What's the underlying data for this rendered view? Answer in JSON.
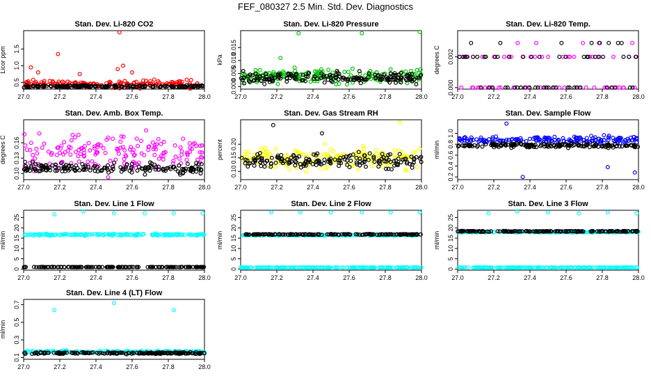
{
  "page_title": "FEF_080327  2.5 Min. Std. Dev. Diagnostics",
  "colors": {
    "axis": "#000000",
    "red": "#ff0000",
    "green": "#00c000",
    "magenta": "#ff00ff",
    "black": "#000000",
    "yellow": "#ffff00",
    "blue": "#0000ff",
    "cyan": "#00ffff"
  },
  "chart_data": [
    {
      "type": "scatter",
      "title": "Stan. Dev. Li-820 CO2",
      "xlabel": "",
      "ylabel": "Licor ppm",
      "xlim": [
        27.0,
        28.0
      ],
      "ylim": [
        0.3,
        2.05
      ],
      "x_ticks": [
        "27.0",
        "27.2",
        "27.4",
        "27.6",
        "27.8",
        "28.0"
      ],
      "y_ticks": [
        "0.5",
        "1.0",
        "1.5"
      ],
      "series": [
        {
          "color": "red",
          "base": 0.45,
          "spread": 0.15,
          "outliers": [
            [
              27.04,
              0.95
            ],
            [
              27.08,
              0.8
            ],
            [
              27.19,
              1.35
            ],
            [
              27.31,
              0.75
            ],
            [
              27.52,
              0.9
            ],
            [
              27.53,
              2.0
            ],
            [
              27.55,
              1.0
            ],
            [
              27.6,
              0.8
            ]
          ]
        },
        {
          "color": "black",
          "base": 0.38,
          "spread": 0.05,
          "outliers": []
        }
      ]
    },
    {
      "type": "scatter",
      "title": "Stan. Dev. Li-820 Pressure",
      "xlabel": "",
      "ylabel": "kPa",
      "xlim": [
        27.0,
        28.0
      ],
      "ylim": [
        -0.001,
        0.0215
      ],
      "x_ticks": [
        "27.0",
        "27.2",
        "27.4",
        "27.6",
        "27.8",
        "28.0"
      ],
      "y_ticks": [
        "0.000",
        "0.005",
        "0.010",
        "0.015"
      ],
      "series": [
        {
          "color": "green",
          "base": 0.004,
          "spread": 0.004,
          "outliers": [
            [
              27.22,
              0.011
            ],
            [
              27.32,
              0.0205
            ],
            [
              27.67,
              0.0205
            ],
            [
              27.99,
              0.021
            ]
          ]
        },
        {
          "color": "black",
          "base": 0.0035,
          "spread": 0.003,
          "outliers": []
        }
      ]
    },
    {
      "type": "scatter",
      "title": "Stan. Dev. Li-820 Temp.",
      "xlabel": "",
      "ylabel": "degrees C",
      "xlim": [
        27.0,
        28.0
      ],
      "ylim": [
        -0.0001,
        0.0037
      ],
      "x_ticks": [
        "27.0",
        "27.2",
        "27.4",
        "27.6",
        "27.8",
        "28.0"
      ],
      "y_ticks": [
        "0.000",
        "0.002"
      ],
      "series": [
        {
          "color": "magenta",
          "levels": [
            0.0,
            0.002,
            0.0029
          ]
        },
        {
          "color": "black",
          "levels": [
            0.0,
            0.002,
            0.0029
          ]
        }
      ]
    },
    {
      "type": "scatter",
      "title": "Stan. Dev. Amb. Box Temp.",
      "xlabel": "",
      "ylabel": "degrees C",
      "xlim": [
        27.0,
        28.0
      ],
      "ylim": [
        0.088,
        0.205
      ],
      "x_ticks": [
        "27.0",
        "27.2",
        "27.4",
        "27.6",
        "27.8",
        "28.0"
      ],
      "y_ticks": [
        "0.10",
        "0.13",
        "0.16"
      ],
      "series": [
        {
          "color": "magenta",
          "base": 0.14,
          "spread": 0.05,
          "outliers": []
        },
        {
          "color": "black",
          "base": 0.11,
          "spread": 0.015,
          "outliers": []
        }
      ]
    },
    {
      "type": "scatter",
      "title": "Stan. Dev. Gas Stream RH",
      "xlabel": "",
      "ylabel": "percent",
      "xlim": [
        27.0,
        28.0
      ],
      "ylim": [
        0.07,
        0.29
      ],
      "x_ticks": [
        "27.0",
        "27.2",
        "27.4",
        "27.6",
        "27.8",
        "28.0"
      ],
      "y_ticks": [
        "0.10",
        "0.15",
        "0.20"
      ],
      "series": [
        {
          "color": "yellow",
          "base": 0.15,
          "spread": 0.06,
          "outliers": [
            [
              27.88,
              0.28
            ]
          ]
        },
        {
          "color": "black",
          "base": 0.14,
          "spread": 0.04,
          "outliers": [
            [
              27.18,
              0.27
            ],
            [
              27.45,
              0.24
            ]
          ]
        }
      ]
    },
    {
      "type": "scatter",
      "title": "Stan. Dev. Sample Flow",
      "xlabel": "",
      "ylabel": "ml/min",
      "xlim": [
        27.0,
        28.0
      ],
      "ylim": [
        0.15,
        1.25
      ],
      "x_ticks": [
        "27.0",
        "27.2",
        "27.4",
        "27.6",
        "27.8",
        "28.0"
      ],
      "y_ticks": [
        "0.2",
        "0.4",
        "0.6",
        "0.8",
        "1.0"
      ],
      "series": [
        {
          "color": "blue",
          "base": 0.88,
          "spread": 0.1,
          "outliers": [
            [
              27.27,
              1.18
            ],
            [
              27.36,
              0.2
            ],
            [
              27.83,
              0.38
            ],
            [
              27.98,
              0.28
            ]
          ]
        },
        {
          "color": "black",
          "base": 0.78,
          "spread": 0.06,
          "outliers": []
        }
      ]
    },
    {
      "type": "scatter",
      "title": "Stan. Dev. Line 1 Flow",
      "xlabel": "",
      "ylabel": "ml/min",
      "xlim": [
        27.0,
        28.0
      ],
      "ylim": [
        -0.5,
        28.5
      ],
      "x_ticks": [
        "27.0",
        "27.2",
        "27.4",
        "27.6",
        "27.8",
        "28.0"
      ],
      "y_ticks": [
        "0",
        "5",
        "10",
        "15",
        "20",
        "25"
      ],
      "series": [
        {
          "color": "cyan",
          "base": 16.7,
          "spread": 0.6,
          "outliers": [
            [
              27.17,
              26.5
            ],
            [
              27.33,
              28.0
            ],
            [
              27.5,
              27.0
            ],
            [
              27.67,
              27.0
            ],
            [
              27.83,
              27.0
            ],
            [
              27.99,
              27.0
            ]
          ]
        },
        {
          "color": "black",
          "base": 1.0,
          "spread": 0.1,
          "outliers": []
        }
      ]
    },
    {
      "type": "scatter",
      "title": "Stan. Dev. Line 2 Flow",
      "xlabel": "",
      "ylabel": "ml/min",
      "xlim": [
        27.0,
        28.0
      ],
      "ylim": [
        -0.5,
        28.5
      ],
      "x_ticks": [
        "27.0",
        "27.2",
        "27.4",
        "27.6",
        "27.8",
        "28.0"
      ],
      "y_ticks": [
        "0",
        "5",
        "10",
        "15",
        "20",
        "25"
      ],
      "series": [
        {
          "color": "cyan",
          "base": 0.8,
          "spread": 0.1,
          "outliers": [
            [
              27.17,
              27.5
            ],
            [
              27.33,
              27.5
            ],
            [
              27.5,
              27.5
            ],
            [
              27.67,
              27.5
            ],
            [
              27.83,
              27.5
            ],
            [
              27.99,
              27.5
            ]
          ]
        },
        {
          "color": "cyan",
          "base": 16.5,
          "spread": 0.4,
          "outliers": []
        },
        {
          "color": "black",
          "base": 16.8,
          "spread": 0.3,
          "outliers": []
        }
      ]
    },
    {
      "type": "scatter",
      "title": "Stan. Dev. Line 3 Flow",
      "xlabel": "",
      "ylabel": "ml/min",
      "xlim": [
        27.0,
        28.0
      ],
      "ylim": [
        -0.5,
        28.5
      ],
      "x_ticks": [
        "27.0",
        "27.2",
        "27.4",
        "27.6",
        "27.8",
        "28.0"
      ],
      "y_ticks": [
        "0",
        "5",
        "10",
        "15",
        "20",
        "25"
      ],
      "series": [
        {
          "color": "cyan",
          "base": 0.8,
          "spread": 0.1,
          "outliers": [
            [
              27.17,
              27.0
            ],
            [
              27.33,
              28.0
            ],
            [
              27.5,
              27.5
            ],
            [
              27.67,
              27.0
            ],
            [
              27.83,
              27.5
            ],
            [
              27.99,
              27.0
            ]
          ]
        },
        {
          "color": "cyan",
          "base": 18.0,
          "spread": 0.4,
          "outliers": []
        },
        {
          "color": "black",
          "base": 18.3,
          "spread": 0.3,
          "outliers": []
        }
      ]
    },
    {
      "type": "scatter",
      "title": "Stan. Dev. Line 4 (LT) Flow",
      "xlabel": "",
      "ylabel": "ml/min",
      "xlim": [
        27.0,
        28.0
      ],
      "ylim": [
        0.08,
        0.76
      ],
      "x_ticks": [
        "27.0",
        "27.2",
        "27.4",
        "27.6",
        "27.8",
        "28.0"
      ],
      "y_ticks": [
        "0.1",
        "0.3",
        "0.5",
        "0.7"
      ],
      "series": [
        {
          "color": "cyan",
          "base": 0.165,
          "spread": 0.02,
          "outliers": [
            [
              27.17,
              0.64
            ],
            [
              27.5,
              0.72
            ],
            [
              27.83,
              0.64
            ]
          ]
        },
        {
          "color": "black",
          "base": 0.15,
          "spread": 0.015,
          "outliers": []
        }
      ]
    }
  ]
}
